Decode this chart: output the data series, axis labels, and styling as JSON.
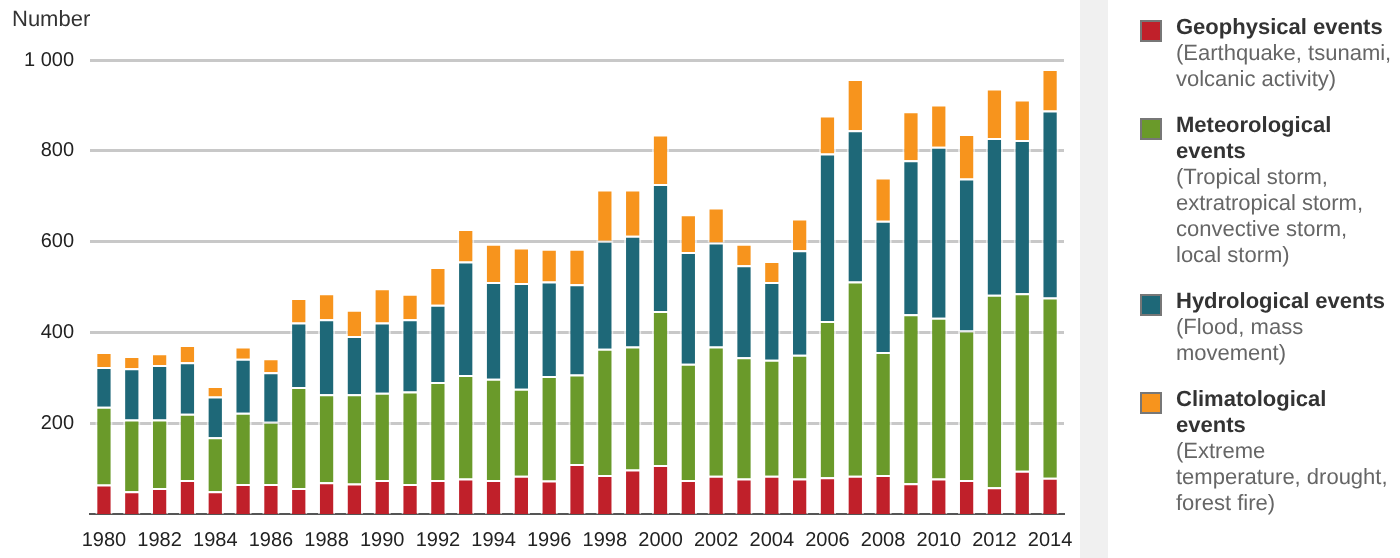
{
  "chart_data": {
    "type": "bar",
    "stacked": true,
    "ylabel": "Number",
    "legend": "right",
    "grid": "y",
    "categories": [
      "1980",
      null,
      "1982",
      null,
      "1984",
      null,
      "1986",
      null,
      "1988",
      null,
      "1990",
      null,
      "1992",
      null,
      "1994",
      null,
      "1996",
      null,
      "1998",
      null,
      "2000",
      null,
      "2002",
      null,
      "2004",
      null,
      "2006",
      null,
      "2008",
      null,
      "2010",
      null,
      "2012",
      null,
      "2014"
    ],
    "ylim": [
      0,
      1000
    ],
    "yticks": [
      200,
      400,
      600,
      800,
      {
        "value": 1000,
        "label": "1 000"
      }
    ],
    "series": [
      {
        "name": "Geophysical events",
        "color": "#c0202a",
        "values": [
          65,
          50,
          57,
          75,
          50,
          66,
          66,
          57,
          70,
          67,
          75,
          66,
          75,
          78,
          75,
          84,
          74,
          110,
          86,
          98,
          108,
          75,
          84,
          78,
          84,
          78,
          81,
          84,
          86,
          68,
          78,
          75,
          59,
          95,
          80
        ]
      },
      {
        "name": "Meteorological events",
        "color": "#6a9a2a",
        "values": [
          171,
          158,
          151,
          146,
          119,
          157,
          137,
          223,
          194,
          197,
          192,
          204,
          216,
          228,
          223,
          192,
          230,
          197,
          278,
          271,
          339,
          256,
          285,
          267,
          256,
          273,
          344,
          428,
          271,
          372,
          354,
          329,
          424,
          391,
          397
        ]
      },
      {
        "name": "Hydrological events",
        "color": "#1e6878",
        "values": [
          88,
          113,
          120,
          113,
          90,
          119,
          109,
          142,
          165,
          128,
          155,
          159,
          170,
          250,
          213,
          233,
          208,
          199,
          238,
          244,
          280,
          246,
          229,
          203,
          171,
          230,
          369,
          333,
          289,
          339,
          377,
          335,
          345,
          338,
          412
        ]
      },
      {
        "name": "Climatological events",
        "color": "#f7941d",
        "values": [
          33,
          27,
          26,
          38,
          23,
          27,
          31,
          54,
          57,
          58,
          75,
          56,
          83,
          72,
          84,
          78,
          72,
          78,
          113,
          102,
          109,
          83,
          77,
          47,
          46,
          70,
          84,
          113,
          95,
          108,
          93,
          98,
          109,
          89,
          91
        ]
      }
    ],
    "annotations": [
      "(Earthquake, tsunami, volcanic activity)",
      "(Tropical storm, extratropical storm, convective storm, local storm)",
      "(Flood, mass movement)",
      "(Extreme temperature, drought, forest fire)"
    ]
  }
}
